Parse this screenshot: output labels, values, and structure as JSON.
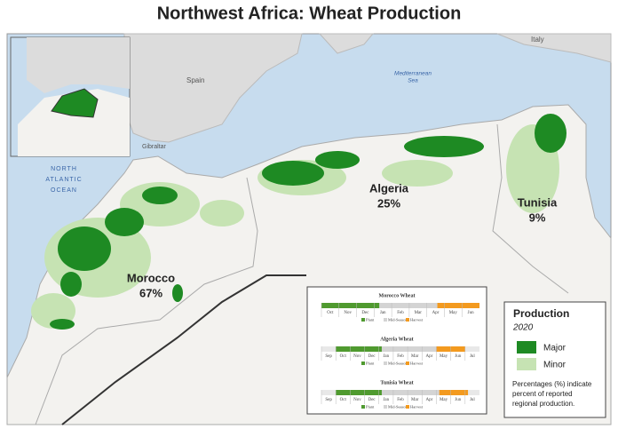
{
  "title": "Northwest Africa: Wheat Production",
  "places": {
    "spain": "Spain",
    "italy": "Italy",
    "gibraltar": "Gibraltar",
    "sea": [
      "Mediterranean",
      "Sea"
    ],
    "ocean": [
      "NORTH",
      "ATLANTIC",
      "OCEAN"
    ]
  },
  "countries": [
    {
      "name": "Morocco",
      "share": "67%"
    },
    {
      "name": "Algeria",
      "share": "25%"
    },
    {
      "name": "Tunisia",
      "share": "9%"
    }
  ],
  "calendars": [
    {
      "title": "Morocco Wheat",
      "months": [
        "Oct",
        "Nov",
        "Dec",
        "Jan",
        "Feb",
        "Mar",
        "Apr",
        "May",
        "Jun"
      ]
    },
    {
      "title": "Algeria Wheat",
      "months": [
        "Sep",
        "Oct",
        "Nov",
        "Dec",
        "Jan",
        "Feb",
        "Mar",
        "Apr",
        "May",
        "Jun",
        "Jul"
      ]
    },
    {
      "title": "Tunisia Wheat",
      "months": [
        "Sep",
        "Oct",
        "Nov",
        "Dec",
        "Jan",
        "Feb",
        "Mar",
        "Apr",
        "May",
        "Jun",
        "Jul"
      ]
    }
  ],
  "calendar_legend": [
    "Plant",
    "Mid-Season",
    "Harvest"
  ],
  "legend": {
    "title": "Production",
    "year": "2020",
    "items": [
      "Major",
      "Minor"
    ],
    "note": [
      "Percentages (%) indicate",
      "percent of reported",
      "regional production."
    ]
  }
}
